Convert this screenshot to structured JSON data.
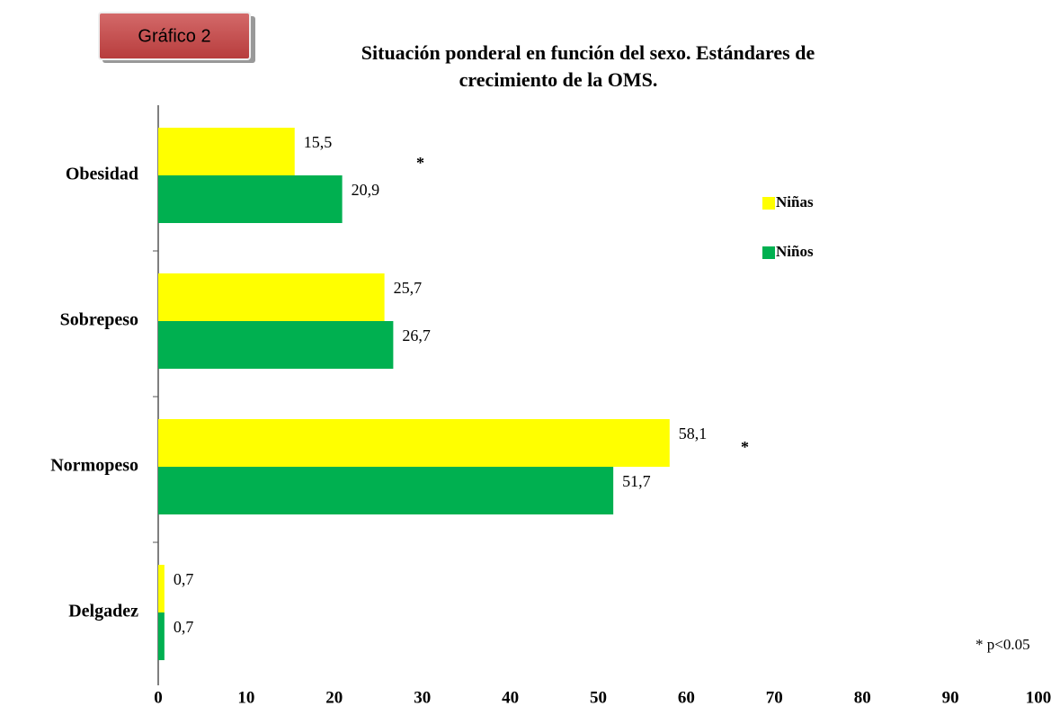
{
  "chart_data": {
    "type": "hbar",
    "badge": "Gráfico 2",
    "title": [
      "Situación ponderal en función del sexo. Estándares de",
      "crecimiento de la OMS."
    ],
    "categories": [
      "Obesidad",
      "Sobrepeso",
      "Normopeso",
      "Delgadez"
    ],
    "series": [
      {
        "name": "Niñas",
        "color": "#ffff00",
        "values": [
          15.5,
          25.7,
          58.1,
          0.7
        ],
        "value_labels": [
          "15,5",
          "25,7",
          "58,1",
          "0,7"
        ]
      },
      {
        "name": "Niños",
        "color": "#00b050",
        "values": [
          20.9,
          26.7,
          51.7,
          0.7
        ],
        "value_labels": [
          "20,9",
          "26,7",
          "51,7",
          "0,7"
        ]
      }
    ],
    "xlim": [
      0,
      100
    ],
    "xticks": [
      0,
      10,
      20,
      30,
      40,
      50,
      60,
      70,
      80,
      90,
      100
    ],
    "annotations": [
      "*",
      "*",
      "* p<0.05"
    ]
  }
}
